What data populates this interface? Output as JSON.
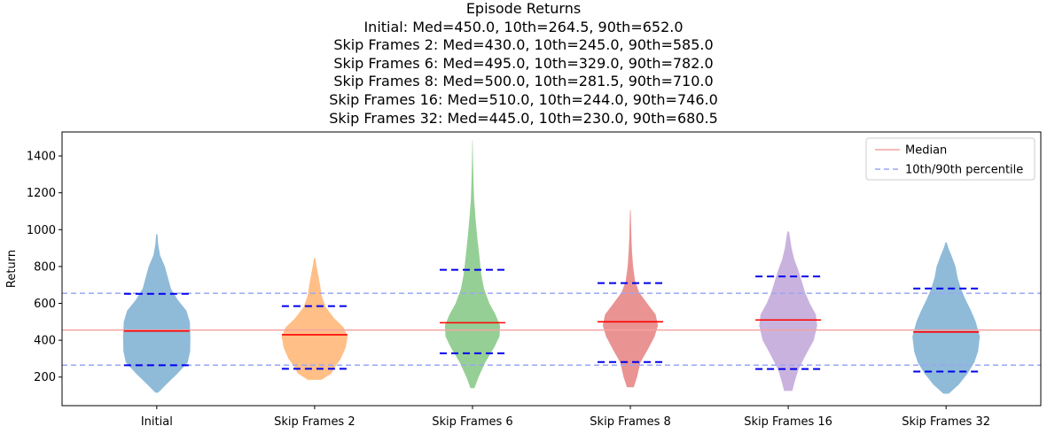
{
  "chart_data": {
    "type": "violin",
    "title": "Episode Returns",
    "subtitle_lines": [
      "Initial: Med=450.0, 10th=264.5, 90th=652.0",
      "Skip Frames 2: Med=430.0, 10th=245.0, 90th=585.0",
      "Skip Frames 6: Med=495.0, 10th=329.0, 90th=782.0",
      "Skip Frames 8: Med=500.0, 10th=281.5, 90th=710.0",
      "Skip Frames 16: Med=510.0, 10th=244.0, 90th=746.0",
      "Skip Frames 32: Med=445.0, 10th=230.0, 90th=680.5"
    ],
    "xlabel": "",
    "ylabel": "Return",
    "ylim": [
      45,
      1530
    ],
    "yticks": [
      200,
      400,
      600,
      800,
      1000,
      1200,
      1400
    ],
    "categories": [
      "Initial",
      "Skip Frames 2",
      "Skip Frames 6",
      "Skip Frames 8",
      "Skip Frames 16",
      "Skip Frames 32"
    ],
    "colors": [
      "#1f77b4",
      "#ff7f0e",
      "#2ca02c",
      "#d62728",
      "#9467bd",
      "#1f77b4"
    ],
    "series": [
      {
        "median": 450.0,
        "p10": 264.5,
        "p90": 652.0,
        "min": 115,
        "max": 975,
        "density": [
          [
            115,
            0.04
          ],
          [
            160,
            0.28
          ],
          [
            220,
            0.62
          ],
          [
            280,
            0.92
          ],
          [
            340,
            0.99
          ],
          [
            420,
            1.0
          ],
          [
            500,
            0.98
          ],
          [
            560,
            0.88
          ],
          [
            620,
            0.62
          ],
          [
            680,
            0.42
          ],
          [
            740,
            0.33
          ],
          [
            800,
            0.24
          ],
          [
            860,
            0.1
          ],
          [
            920,
            0.04
          ],
          [
            975,
            0.02
          ]
        ]
      },
      {
        "median": 430.0,
        "p10": 245.0,
        "p90": 585.0,
        "min": 185,
        "max": 845,
        "density": [
          [
            185,
            0.2
          ],
          [
            220,
            0.5
          ],
          [
            260,
            0.62
          ],
          [
            300,
            0.78
          ],
          [
            360,
            0.92
          ],
          [
            420,
            0.98
          ],
          [
            470,
            0.86
          ],
          [
            520,
            0.58
          ],
          [
            580,
            0.33
          ],
          [
            640,
            0.21
          ],
          [
            700,
            0.16
          ],
          [
            760,
            0.1
          ],
          [
            810,
            0.05
          ],
          [
            845,
            0.02
          ]
        ]
      },
      {
        "median": 495.0,
        "p10": 329.0,
        "p90": 782.0,
        "min": 140,
        "max": 1485,
        "density": [
          [
            140,
            0.06
          ],
          [
            200,
            0.18
          ],
          [
            280,
            0.38
          ],
          [
            360,
            0.64
          ],
          [
            420,
            0.8
          ],
          [
            480,
            0.82
          ],
          [
            540,
            0.68
          ],
          [
            600,
            0.5
          ],
          [
            680,
            0.34
          ],
          [
            760,
            0.26
          ],
          [
            860,
            0.2
          ],
          [
            960,
            0.14
          ],
          [
            1060,
            0.09
          ],
          [
            1160,
            0.05
          ],
          [
            1260,
            0.03
          ],
          [
            1380,
            0.015
          ],
          [
            1485,
            0.005
          ]
        ]
      },
      {
        "median": 500.0,
        "p10": 281.5,
        "p90": 710.0,
        "min": 145,
        "max": 1105,
        "density": [
          [
            145,
            0.1
          ],
          [
            200,
            0.2
          ],
          [
            280,
            0.3
          ],
          [
            350,
            0.52
          ],
          [
            420,
            0.72
          ],
          [
            480,
            0.82
          ],
          [
            540,
            0.75
          ],
          [
            600,
            0.5
          ],
          [
            660,
            0.26
          ],
          [
            720,
            0.14
          ],
          [
            800,
            0.08
          ],
          [
            880,
            0.05
          ],
          [
            960,
            0.03
          ],
          [
            1040,
            0.02
          ],
          [
            1105,
            0.01
          ]
        ]
      },
      {
        "median": 510.0,
        "p10": 244.0,
        "p90": 746.0,
        "min": 125,
        "max": 990,
        "density": [
          [
            125,
            0.12
          ],
          [
            180,
            0.2
          ],
          [
            240,
            0.3
          ],
          [
            320,
            0.52
          ],
          [
            400,
            0.76
          ],
          [
            480,
            0.86
          ],
          [
            540,
            0.82
          ],
          [
            600,
            0.64
          ],
          [
            660,
            0.5
          ],
          [
            720,
            0.4
          ],
          [
            780,
            0.3
          ],
          [
            840,
            0.18
          ],
          [
            900,
            0.1
          ],
          [
            960,
            0.05
          ],
          [
            990,
            0.02
          ]
        ]
      },
      {
        "median": 445.0,
        "p10": 230.0,
        "p90": 680.5,
        "min": 110,
        "max": 930,
        "density": [
          [
            110,
            0.08
          ],
          [
            160,
            0.38
          ],
          [
            220,
            0.64
          ],
          [
            280,
            0.84
          ],
          [
            340,
            0.95
          ],
          [
            420,
            1.0
          ],
          [
            500,
            0.88
          ],
          [
            560,
            0.74
          ],
          [
            620,
            0.58
          ],
          [
            680,
            0.44
          ],
          [
            740,
            0.34
          ],
          [
            800,
            0.28
          ],
          [
            860,
            0.16
          ],
          [
            900,
            0.07
          ],
          [
            930,
            0.02
          ]
        ]
      }
    ],
    "overall_median": 455,
    "overall_p10": 265,
    "overall_p90": 655,
    "legend": {
      "placement": "top-right",
      "entries": [
        {
          "label": "Median",
          "color": "#f4a3a3",
          "style": "solid"
        },
        {
          "label": "10th/90th percentile",
          "color": "#9aa6f5",
          "style": "dashed"
        }
      ]
    }
  }
}
